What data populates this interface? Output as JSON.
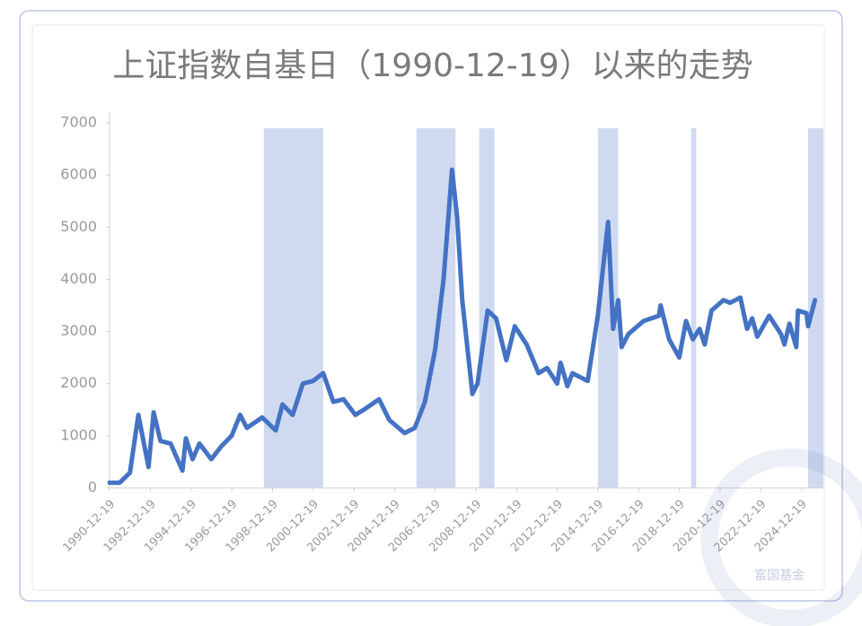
{
  "chart_data": {
    "type": "line",
    "title": "上证指数自基日（1990-12-19）以来的走势",
    "watermark": "富国基金",
    "x": [
      "1990-12",
      "1991-06",
      "1991-12",
      "1992-05",
      "1992-11",
      "1993-02",
      "1993-06",
      "1993-12",
      "1994-07",
      "1994-09",
      "1995-01",
      "1995-05",
      "1995-12",
      "1996-06",
      "1996-12",
      "1997-05",
      "1997-09",
      "1998-06",
      "1999-02",
      "1999-06",
      "1999-12",
      "2000-06",
      "2000-12",
      "2001-06",
      "2001-12",
      "2002-06",
      "2003-01",
      "2003-06",
      "2004-03",
      "2004-09",
      "2005-06",
      "2005-12",
      "2006-06",
      "2006-12",
      "2007-05",
      "2007-10",
      "2008-01",
      "2008-04",
      "2008-10",
      "2009-01",
      "2009-07",
      "2009-12",
      "2010-06",
      "2010-11",
      "2011-06",
      "2012-01",
      "2012-06",
      "2012-12",
      "2013-02",
      "2013-06",
      "2013-09",
      "2014-06",
      "2014-12",
      "2015-06",
      "2015-09",
      "2015-12",
      "2016-02",
      "2016-06",
      "2017-03",
      "2017-12",
      "2018-01",
      "2018-06",
      "2018-12",
      "2019-04",
      "2019-08",
      "2019-12",
      "2020-03",
      "2020-07",
      "2021-02",
      "2021-06",
      "2021-12",
      "2022-04",
      "2022-07",
      "2022-10",
      "2023-05",
      "2023-12",
      "2024-02",
      "2024-05",
      "2024-09",
      "2024-10",
      "2025-03",
      "2025-04",
      "2025-08"
    ],
    "series": [
      {
        "color": "#4472c4",
        "values": [
          100,
          100,
          290,
          1400,
          400,
          1450,
          900,
          850,
          330,
          950,
          550,
          850,
          550,
          800,
          1000,
          1400,
          1150,
          1350,
          1100,
          1600,
          1400,
          2000,
          2050,
          2200,
          1650,
          1700,
          1400,
          1500,
          1700,
          1300,
          1050,
          1150,
          1650,
          2650,
          4000,
          6100,
          5200,
          3600,
          1800,
          2000,
          3400,
          3250,
          2450,
          3100,
          2750,
          2200,
          2300,
          2000,
          2400,
          1950,
          2200,
          2050,
          3300,
          5100,
          3050,
          3600,
          2700,
          2950,
          3200,
          3300,
          3500,
          2850,
          2500,
          3200,
          2850,
          3050,
          2750,
          3400,
          3600,
          3550,
          3650,
          3050,
          3250,
          2900,
          3300,
          2950,
          2750,
          3150,
          2700,
          3400,
          3350,
          3100,
          3600
        ]
      }
    ],
    "bands": [
      {
        "start": "1998-07",
        "end": "2001-06"
      },
      {
        "start": "2006-01",
        "end": "2007-12"
      },
      {
        "start": "2009-02",
        "end": "2009-11"
      },
      {
        "start": "2014-12",
        "end": "2015-12"
      },
      {
        "start": "2019-07",
        "end": "2019-10"
      },
      {
        "start": "2025-04",
        "end": "2026-01"
      }
    ],
    "band_color": "#cfdaf0",
    "xlim": [
      "1990-12",
      "2026-01"
    ],
    "xticks": [
      "1990-12-19",
      "1992-12-19",
      "1994-12-19",
      "1996-12-19",
      "1998-12-19",
      "2000-12-19",
      "2002-12-19",
      "2004-12-19",
      "2006-12-19",
      "2008-12-19",
      "2010-12-19",
      "2012-12-19",
      "2014-12-19",
      "2016-12-19",
      "2018-12-19",
      "2020-12-19",
      "2022-12-19",
      "2024-12-19"
    ],
    "ylim": [
      0,
      7000
    ],
    "yticks": [
      0,
      1000,
      2000,
      3000,
      4000,
      5000,
      6000,
      7000
    ]
  }
}
